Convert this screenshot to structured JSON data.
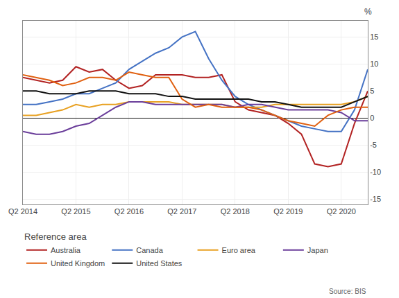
{
  "chart_data": {
    "type": "line",
    "y_label": "%",
    "legend_title": "Reference area",
    "source": "Source: BIS",
    "categories": [
      "Q2 2014",
      null,
      null,
      null,
      "Q2 2015",
      null,
      null,
      null,
      "Q2 2016",
      null,
      null,
      null,
      "Q2 2017",
      null,
      null,
      null,
      "Q2 2018",
      null,
      null,
      null,
      "Q2 2019",
      null,
      null,
      null,
      "Q2 2020",
      null,
      null
    ],
    "ylim": [
      -16,
      18
    ],
    "yticks": [
      -15,
      -10,
      -5,
      0,
      5,
      10,
      15
    ],
    "grid": true,
    "legend": "bottom",
    "series": [
      {
        "name": "Australia",
        "color": "#b22222",
        "values": [
          7.5,
          7.0,
          6.5,
          7.0,
          9.5,
          8.5,
          9.0,
          7.0,
          5.5,
          6.0,
          8.0,
          8.0,
          8.0,
          7.5,
          7.5,
          8.0,
          3.0,
          1.5,
          1.0,
          0.5,
          -1.0,
          -3.0,
          -8.5,
          -9.0,
          -8.5,
          -1.0,
          5.0
        ]
      },
      {
        "name": "Canada",
        "color": "#4472c4",
        "values": [
          2.5,
          2.5,
          3.0,
          3.5,
          4.5,
          4.5,
          5.5,
          6.5,
          9.0,
          10.5,
          12.0,
          13.0,
          15.0,
          16.0,
          11.0,
          7.0,
          4.0,
          2.5,
          1.5,
          0.5,
          -0.5,
          -1.5,
          -2.0,
          -2.5,
          -2.5,
          1.5,
          9.0
        ]
      },
      {
        "name": "Euro area",
        "color": "#e8a020",
        "values": [
          0.5,
          0.5,
          1.0,
          1.5,
          2.5,
          2.0,
          2.5,
          2.5,
          3.0,
          3.0,
          3.0,
          3.0,
          2.5,
          2.5,
          2.5,
          2.5,
          2.0,
          2.0,
          2.0,
          2.5,
          2.5,
          2.5,
          2.5,
          2.5,
          2.5,
          3.0,
          4.0
        ]
      },
      {
        "name": "Japan",
        "color": "#6a3d9a",
        "values": [
          -2.5,
          -3.0,
          -3.0,
          -2.5,
          -1.5,
          -1.0,
          0.5,
          2.0,
          3.0,
          3.0,
          2.5,
          2.5,
          2.5,
          2.5,
          2.5,
          2.5,
          2.0,
          2.5,
          2.5,
          2.0,
          1.5,
          1.5,
          1.5,
          1.5,
          1.0,
          -0.5,
          -0.5
        ]
      },
      {
        "name": "United Kingdom",
        "color": "#e06010",
        "values": [
          8.0,
          7.5,
          7.0,
          6.0,
          6.5,
          7.5,
          7.5,
          7.0,
          8.5,
          8.0,
          7.5,
          7.5,
          3.5,
          2.0,
          2.5,
          2.0,
          2.0,
          2.0,
          1.5,
          0.5,
          -0.5,
          -1.0,
          -1.5,
          0.5,
          1.5,
          2.0,
          2.0
        ]
      },
      {
        "name": "United States",
        "color": "#111111",
        "values": [
          5.0,
          5.0,
          4.5,
          4.5,
          4.5,
          5.0,
          5.0,
          5.0,
          4.5,
          4.5,
          4.5,
          4.0,
          4.0,
          3.5,
          3.5,
          3.5,
          3.5,
          3.5,
          3.0,
          3.0,
          2.5,
          2.0,
          2.0,
          2.0,
          2.0,
          3.0,
          4.0
        ]
      }
    ]
  }
}
